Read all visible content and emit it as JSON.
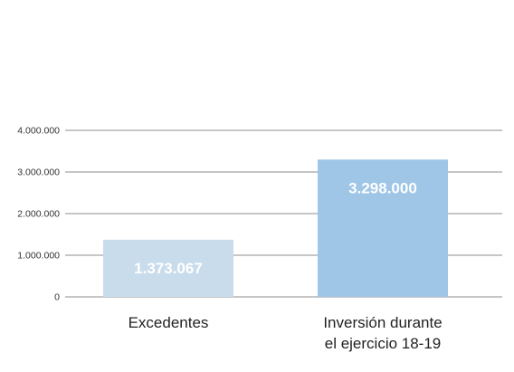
{
  "chart_data": {
    "type": "bar",
    "title": "",
    "xlabel": "",
    "ylabel": "",
    "categories": [
      [
        "Excedentes"
      ],
      [
        "Inversión durante",
        "el ejercicio 18-19"
      ]
    ],
    "values": [
      1373067,
      3298000
    ],
    "data_labels": [
      "1.373.067",
      "3.298.000"
    ],
    "bar_colors": [
      "#c9dcec",
      "#9fc6e6"
    ],
    "ylim": [
      0,
      4000000
    ],
    "yticks": [
      0,
      1000000,
      2000000,
      3000000,
      4000000
    ],
    "ytick_labels": [
      "0",
      "1.000.000",
      "2.000.000",
      "3.000.000",
      "4.000.000"
    ],
    "grid": true,
    "legend": "none"
  }
}
